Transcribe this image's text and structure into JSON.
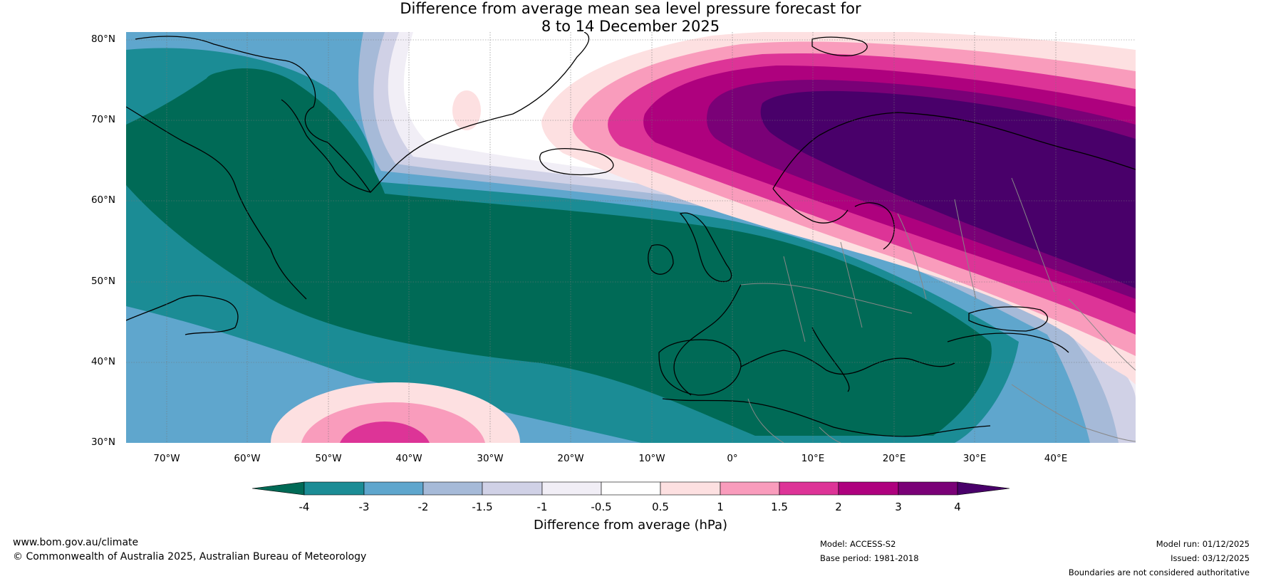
{
  "title": {
    "line1": "Difference from average mean sea level pressure forecast for",
    "line2": "8 to 14 December 2025"
  },
  "axes": {
    "lat_labels": [
      "80°N",
      "70°N",
      "60°N",
      "50°N",
      "40°N",
      "30°N"
    ],
    "lon_labels": [
      "70°W",
      "60°W",
      "50°W",
      "40°W",
      "30°W",
      "20°W",
      "10°W",
      "0°",
      "10°E",
      "20°E",
      "30°E",
      "40°E"
    ],
    "lat_range": [
      30,
      81
    ],
    "lon_range": [
      -75,
      50
    ]
  },
  "legend": {
    "ticks": [
      "-4",
      "-3",
      "-2",
      "-1.5",
      "-1",
      "-0.5",
      "0.5",
      "1",
      "1.5",
      "2",
      "3",
      "4"
    ],
    "label": "Difference from average (hPa)",
    "colors": {
      "lt_m4": "#006a56",
      "m4_m3": "#1b8c95",
      "m3_m2": "#5fa6cd",
      "m2_m1_5": "#a6bad8",
      "m1_5_m1": "#d0d1e6",
      "m1_m0_5": "#f1eef6",
      "m0_5_0_5": "#ffffff",
      "p0_5_1": "#fde0e1",
      "p1_1_5": "#f99cbc",
      "p1_5_2": "#dd3497",
      "p2_3": "#ae017e",
      "p3_4": "#7a0177",
      "gt_4": "#49006a"
    }
  },
  "footer": {
    "url": "www.bom.gov.au/climate",
    "copyright": "© Commonwealth of Australia 2025, Australian Bureau of Meteorology",
    "model": "Model: ACCESS-S2",
    "base_period": "Base period: 1981-2018",
    "model_run": "Model run: 01/12/2025",
    "issued": "Issued: 03/12/2025",
    "disclaimer": "Boundaries are not considered authoritative"
  }
}
